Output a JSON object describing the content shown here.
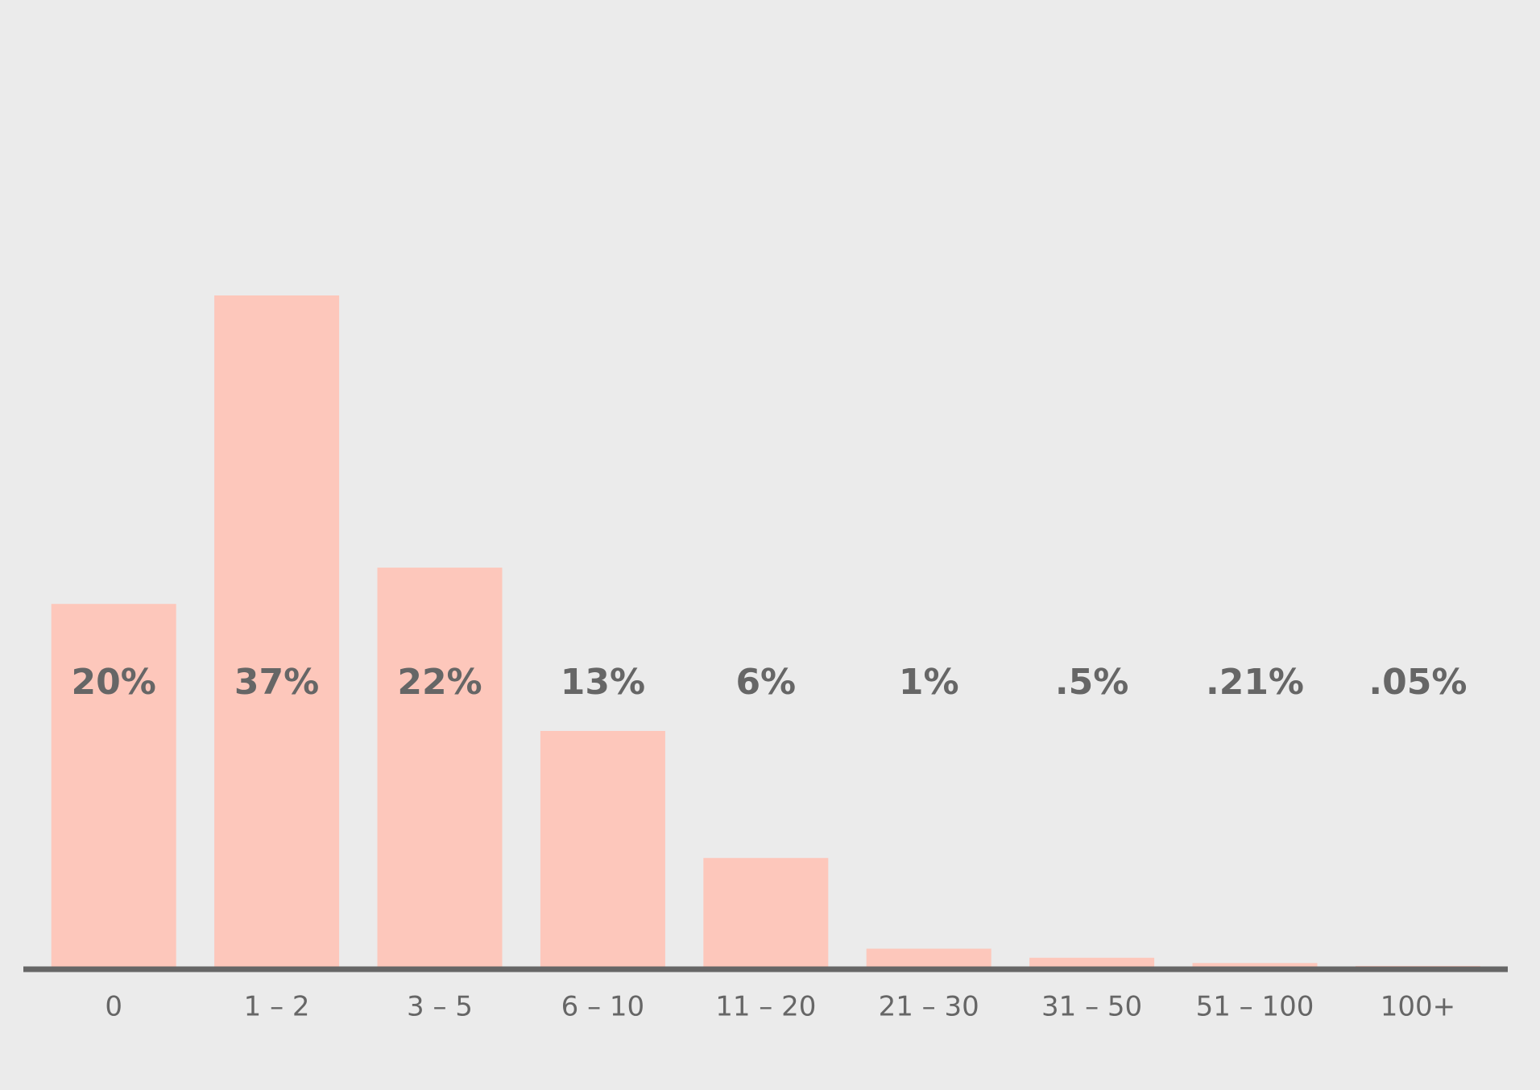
{
  "chart_data": {
    "type": "bar",
    "categories": [
      "0",
      "1 – 2",
      "3 – 5",
      "6 – 10",
      "11 – 20",
      "21 – 30",
      "31 – 50",
      "51 – 100",
      "100+"
    ],
    "values": [
      20,
      37,
      22,
      13,
      6,
      1,
      0.5,
      0.21,
      0.05
    ],
    "value_labels": [
      "20%",
      "37%",
      "22%",
      "13%",
      "6%",
      "1%",
      ".5%",
      ".21%",
      ".05%"
    ],
    "color": "#fdc7bb"
  }
}
